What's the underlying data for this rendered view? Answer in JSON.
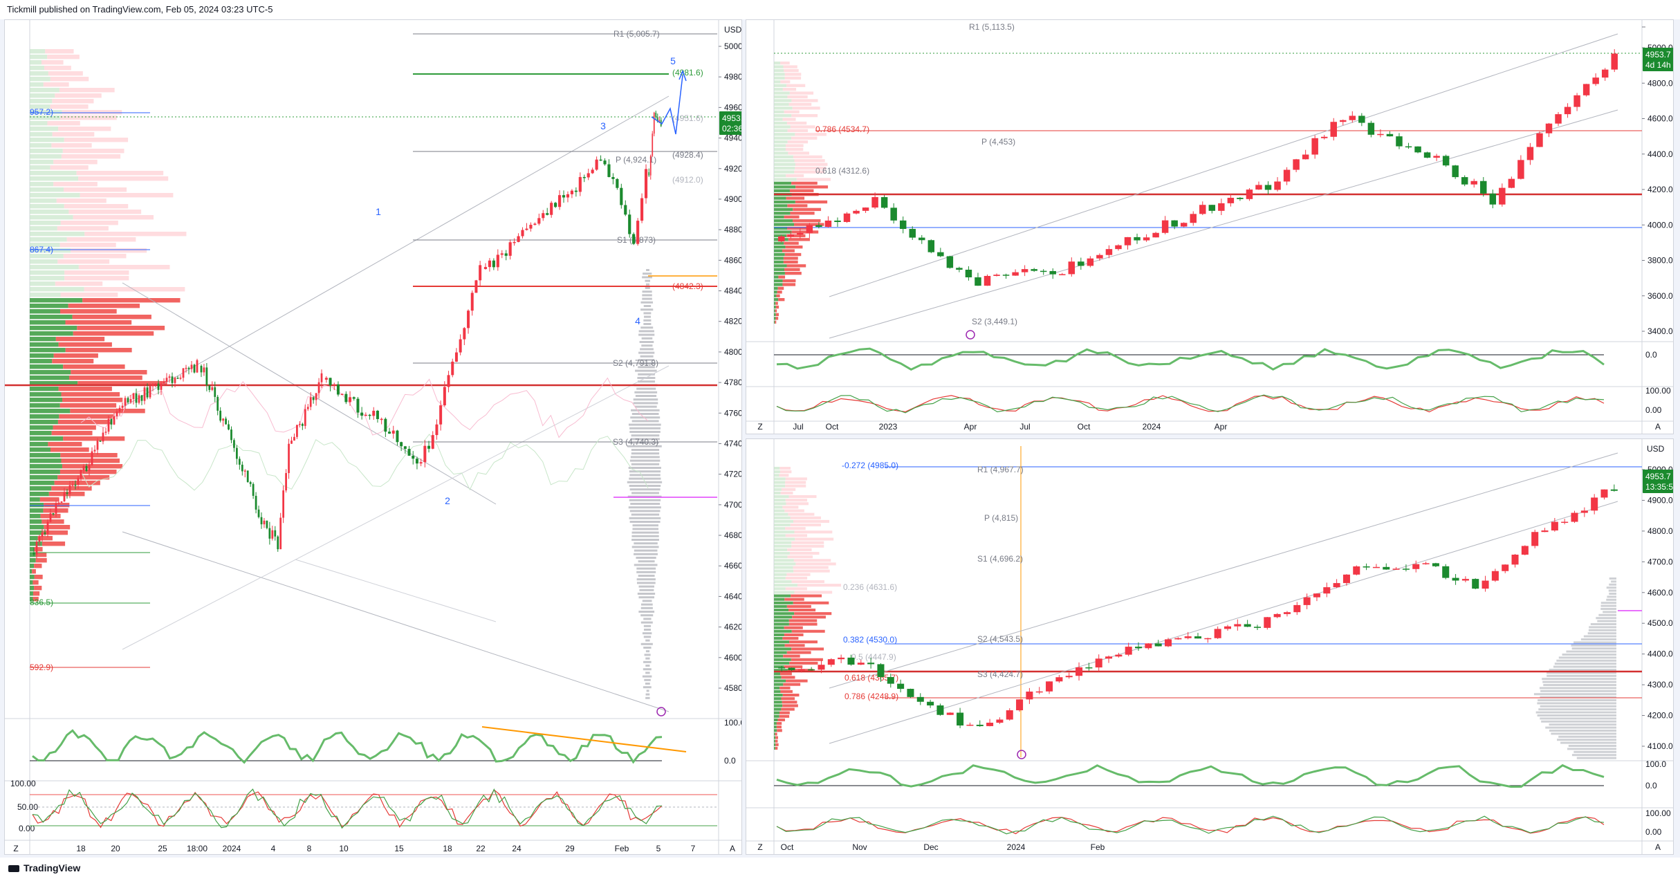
{
  "header": {
    "publisher": "Tickmill published on TradingView.com, Feb 05, 2024 03:23 UTC-5"
  },
  "footer": {
    "brand": "TradingView"
  },
  "colors": {
    "up": "#1b8a2e",
    "down": "#f23645",
    "green_line": "#2e9b3a",
    "red_line": "#e53935",
    "blue": "#2962ff",
    "orange": "#ff9800",
    "violet": "#e040fb",
    "grey": "#b2b5be"
  },
  "panels": {
    "main": {
      "currency": "USD",
      "price_box": {
        "price": "4953.7",
        "timer": "02:36:57"
      },
      "y_ticks": [
        "5000.0",
        "4980.0",
        "4960.0",
        "4940.0",
        "4920.0",
        "4900.0",
        "4880.0",
        "4860.0",
        "4840.0",
        "4820.0",
        "4800.0",
        "4780.0",
        "4760.0",
        "4740.0",
        "4720.0",
        "4700.0",
        "4680.0",
        "4660.0",
        "4640.0",
        "4620.0",
        "4600.0",
        "4580.0"
      ],
      "x_ticks": [
        "18",
        "20",
        "25",
        "18:00",
        "2024",
        "4",
        "8",
        "10",
        "15",
        "18",
        "22",
        "24",
        "29",
        "Feb",
        "5",
        "7"
      ],
      "levels": [
        "R1 (5,005.7)",
        "(4981.6)",
        "(4951.6)",
        "(4928.4)",
        "(4912.0)",
        "P (4,924.1)",
        "S1 (4,873)",
        "(4842.3)",
        "S2 (4,791.8)",
        "S3 (4,740.3)"
      ],
      "left_labels": [
        "957.2)",
        "867.4)",
        "836.5)",
        "592.9)"
      ],
      "wave_labels": [
        "1",
        "2",
        "3",
        "4",
        "5"
      ],
      "rsi_ticks": [
        "100.0",
        "0.0"
      ],
      "stoch_ticks": [
        "100.00",
        "50.00",
        "0.00"
      ],
      "corner_left": "Z",
      "corner_right": "A"
    },
    "top_right": {
      "price_box": {
        "price": "4953.7",
        "timer": "4d 14h"
      },
      "y_ticks": [
        "5000.0",
        "4800.0",
        "4600.0",
        "4400.0",
        "4200.0",
        "4000.0",
        "3800.0",
        "3600.0",
        "3400.0"
      ],
      "x_ticks": [
        "Jul",
        "Oct",
        "2023",
        "Apr",
        "Jul",
        "Oct",
        "2024",
        "Apr"
      ],
      "levels": [
        "R1 (5,113.5)",
        "0.786 (4534.7)",
        "0.618 (4312.6)",
        "P (4,453)",
        "S2 (3,449.1)"
      ],
      "rsi_ticks": [
        "0.0"
      ],
      "stoch_ticks": [
        "100.00",
        "0.00"
      ],
      "corner_left": "Z",
      "corner_right": "A"
    },
    "bottom_right": {
      "currency": "USD",
      "price_box": {
        "price": "4953.7",
        "timer": "13:35:56"
      },
      "y_ticks": [
        "5000.0",
        "4900.0",
        "4800.0",
        "4700.0",
        "4600.0",
        "4500.0",
        "4400.0",
        "4300.0",
        "4200.0",
        "4100.0"
      ],
      "x_ticks": [
        "Oct",
        "Nov",
        "Dec",
        "2024",
        "Feb"
      ],
      "levels": [
        "-0.272 (4985.0)",
        "R1 (4,967.7)",
        "P (4,815)",
        "S1 (4,696.2)",
        "0.236 (4631.6)",
        "0.382 (4530.0)",
        "S2 (4,543.5)",
        "0.5 (4447.9)",
        "S3 (4,424.7)",
        "0.618 (4365.7)",
        "0.786 (4248.9)"
      ],
      "rsi_ticks": [
        "100.0",
        "0.0"
      ],
      "stoch_ticks": [
        "100.00",
        "0.00"
      ],
      "corner_left": "Z",
      "corner_right": "A"
    }
  }
}
